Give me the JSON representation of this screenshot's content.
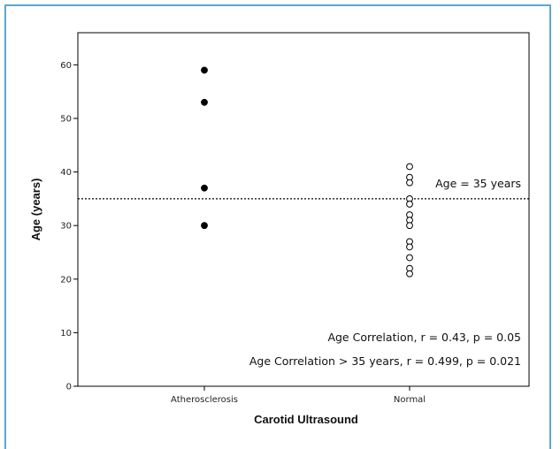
{
  "chart_data": {
    "type": "scatter",
    "xlabel": "Carotid Ultrasound",
    "ylabel": "Age (years)",
    "categories": [
      "Atherosclerosis",
      "Normal"
    ],
    "ylim": [
      0,
      66
    ],
    "yticks": [
      0,
      10,
      20,
      30,
      40,
      50,
      60
    ],
    "grid": false,
    "series": [
      {
        "category": "Atherosclerosis",
        "marker": "filled-circle",
        "color": "#000000",
        "values": [
          59,
          53,
          37,
          30
        ]
      },
      {
        "category": "Normal",
        "marker": "open-circle",
        "color": "#000000",
        "values": [
          41,
          39,
          38,
          35,
          34,
          32,
          31,
          30,
          27,
          26,
          24,
          22,
          21
        ]
      }
    ],
    "reference_line": {
      "y": 35,
      "label": "Age = 35 years",
      "style": "dotted"
    },
    "annotations": [
      "Age Correlation, r = 0.43, p = 0.05",
      "Age Correlation > 35 years, r = 0.499, p = 0.021"
    ]
  }
}
